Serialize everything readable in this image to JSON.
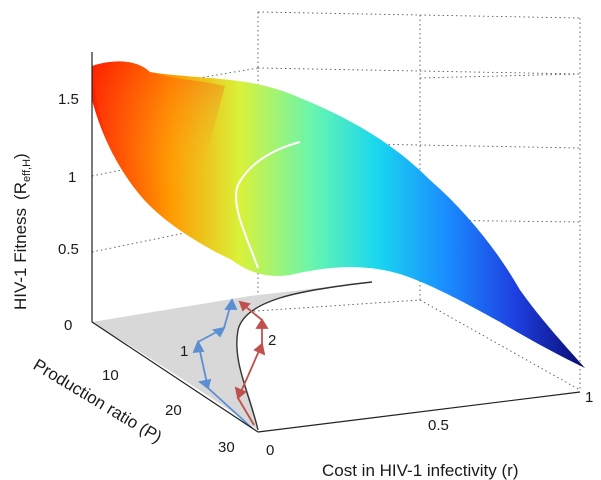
{
  "chart_data": {
    "type": "surface",
    "xlabel": "Cost in HIV-1 infectivity (r)",
    "ylabel": "Production ratio (P)",
    "zlabel": "HIV-1 Fitness",
    "zlabel_math": {
      "open": "(R",
      "sub": "eff,H",
      "close": ")"
    },
    "x_ticks": [
      "0",
      "0.5",
      "1"
    ],
    "y_ticks": [
      "10",
      "20",
      "30"
    ],
    "z_ticks": [
      "0",
      "0.5",
      "1",
      "1.5"
    ],
    "xlim": [
      0,
      1
    ],
    "ylim": [
      0,
      30
    ],
    "zlim": [
      0,
      1.7
    ],
    "colormap": "jet",
    "grid": true,
    "surface_corner_values": [
      {
        "r": 0,
        "P": 0,
        "fitness": 1.7
      },
      {
        "r": 0,
        "P": 30,
        "fitness": 0.45
      },
      {
        "r": 1,
        "P": 0,
        "fitness": 0.0
      },
      {
        "r": 1,
        "P": 30,
        "fitness": 0.0
      }
    ],
    "contour_level": 1,
    "evolution_paths": [
      {
        "label": "1",
        "color": "#5b8fd1"
      },
      {
        "label": "2",
        "color": "#c0504d"
      }
    ]
  }
}
